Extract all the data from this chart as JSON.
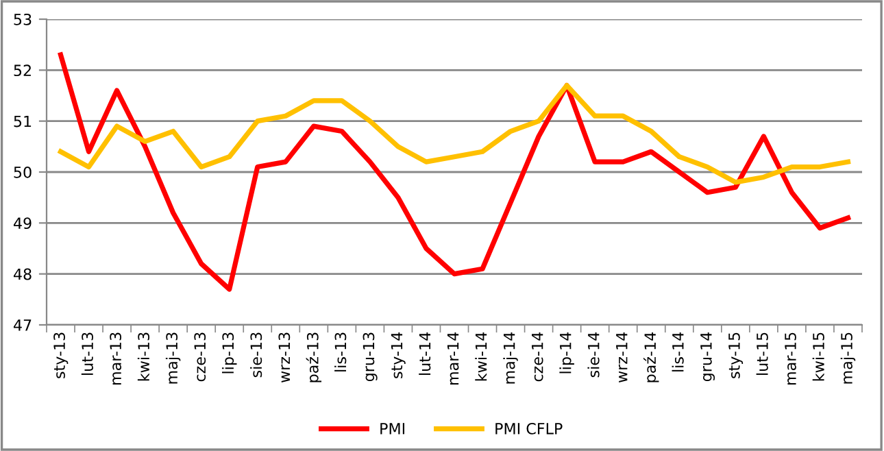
{
  "chart_data": {
    "type": "line",
    "categories": [
      "sty-13",
      "lut-13",
      "mar-13",
      "kwi-13",
      "maj-13",
      "cze-13",
      "lip-13",
      "sie-13",
      "wrz-13",
      "paź-13",
      "lis-13",
      "gru-13",
      "sty-14",
      "lut-14",
      "mar-14",
      "kwi-14",
      "maj-14",
      "cze-14",
      "lip-14",
      "sie-14",
      "wrz-14",
      "paź-14",
      "lis-14",
      "gru-14",
      "sty-15",
      "lut-15",
      "mar-15",
      "kwi-15",
      "maj-15"
    ],
    "series": [
      {
        "name": "PMI",
        "color": "#ff0000",
        "values": [
          52.3,
          50.4,
          51.6,
          50.5,
          49.2,
          48.2,
          47.7,
          50.1,
          50.2,
          50.9,
          50.8,
          50.2,
          49.5,
          48.5,
          48.0,
          48.1,
          49.4,
          50.7,
          51.7,
          50.2,
          50.2,
          50.4,
          50.0,
          49.6,
          49.7,
          50.7,
          49.6,
          48.9,
          49.1
        ]
      },
      {
        "name": "PMI CFLP",
        "color": "#ffc000",
        "values": [
          50.4,
          50.1,
          50.9,
          50.6,
          50.8,
          50.1,
          50.3,
          51.0,
          51.1,
          51.4,
          51.4,
          51.0,
          50.5,
          50.2,
          50.3,
          50.4,
          50.8,
          51.0,
          51.7,
          51.1,
          51.1,
          50.8,
          50.3,
          50.1,
          49.8,
          49.9,
          50.1,
          50.1,
          50.2
        ]
      }
    ],
    "ylim": [
      47,
      53
    ],
    "yticks": [
      47,
      48,
      49,
      50,
      51,
      52,
      53
    ],
    "grid": "y",
    "legend": "bottom",
    "marker": "none",
    "line_style": "solid"
  }
}
